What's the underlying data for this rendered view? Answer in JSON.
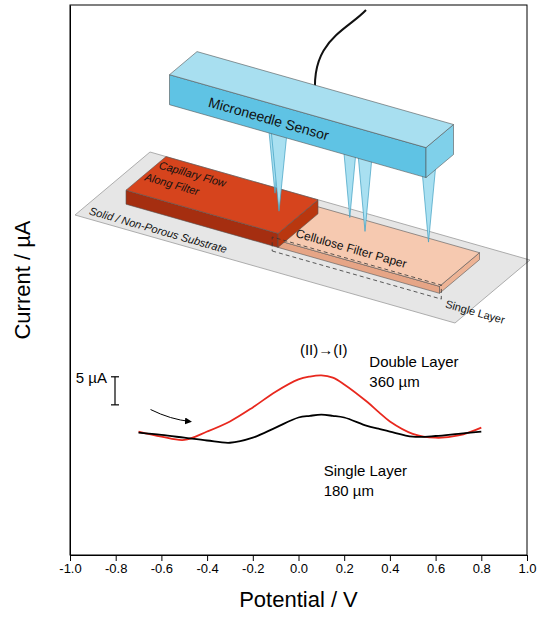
{
  "chart_data": {
    "type": "line",
    "xlabel": "Potential / V",
    "ylabel": "Current / µA",
    "x": [
      -0.7,
      -0.6,
      -0.5,
      -0.4,
      -0.3,
      -0.2,
      -0.1,
      0.0,
      0.05,
      0.1,
      0.15,
      0.2,
      0.3,
      0.35,
      0.4,
      0.5,
      0.6,
      0.7,
      0.8
    ],
    "series": [
      {
        "name": "Double Layer",
        "color": "#e8281e",
        "values": [
          22.0,
          21.1,
          20.5,
          22.0,
          23.8,
          26.3,
          29.1,
          31.3,
          31.8,
          32.0,
          31.6,
          30.4,
          27.3,
          25.5,
          23.8,
          21.6,
          20.9,
          21.3,
          22.7
        ]
      },
      {
        "name": "Single Layer",
        "color": "#000000",
        "values": [
          21.8,
          21.4,
          20.9,
          20.4,
          20.0,
          20.9,
          22.7,
          24.5,
          24.8,
          25.0,
          24.8,
          24.5,
          23.0,
          22.5,
          22.0,
          21.1,
          21.2,
          21.6,
          22.0
        ]
      }
    ],
    "annotations": [
      "(II)→(I)",
      "360 µm",
      "180 µm"
    ],
    "scale_bar": {
      "value": 5,
      "label": "5 µA"
    },
    "xlim": [
      -1,
      1
    ],
    "ylim": [
      0,
      98
    ],
    "xticks": [
      {
        "value": -1,
        "label": "-1.0"
      },
      {
        "value": -0.8,
        "label": "-0.8"
      },
      {
        "value": -0.6,
        "label": "-0.6"
      },
      {
        "value": -0.4,
        "label": "-0.4"
      },
      {
        "value": -0.2,
        "label": "-0.2"
      },
      {
        "value": 0,
        "label": "0.0"
      },
      {
        "value": 0.2,
        "label": "0.2"
      },
      {
        "value": 0.4,
        "label": "0.4"
      },
      {
        "value": 0.6,
        "label": "0.6"
      },
      {
        "value": 0.8,
        "label": "0.8"
      },
      {
        "value": 1,
        "label": "1.0"
      }
    ],
    "yticks": [],
    "tick_labels": "x"
  },
  "inset": {
    "sensor": "Microneedle Sensor",
    "flow": [
      "Capillary Flow",
      "Along Filter"
    ],
    "paper": "Cellulose Filter Paper",
    "layer": "Single Layer",
    "substrate": "Solid / Non-Porous Substrate"
  }
}
